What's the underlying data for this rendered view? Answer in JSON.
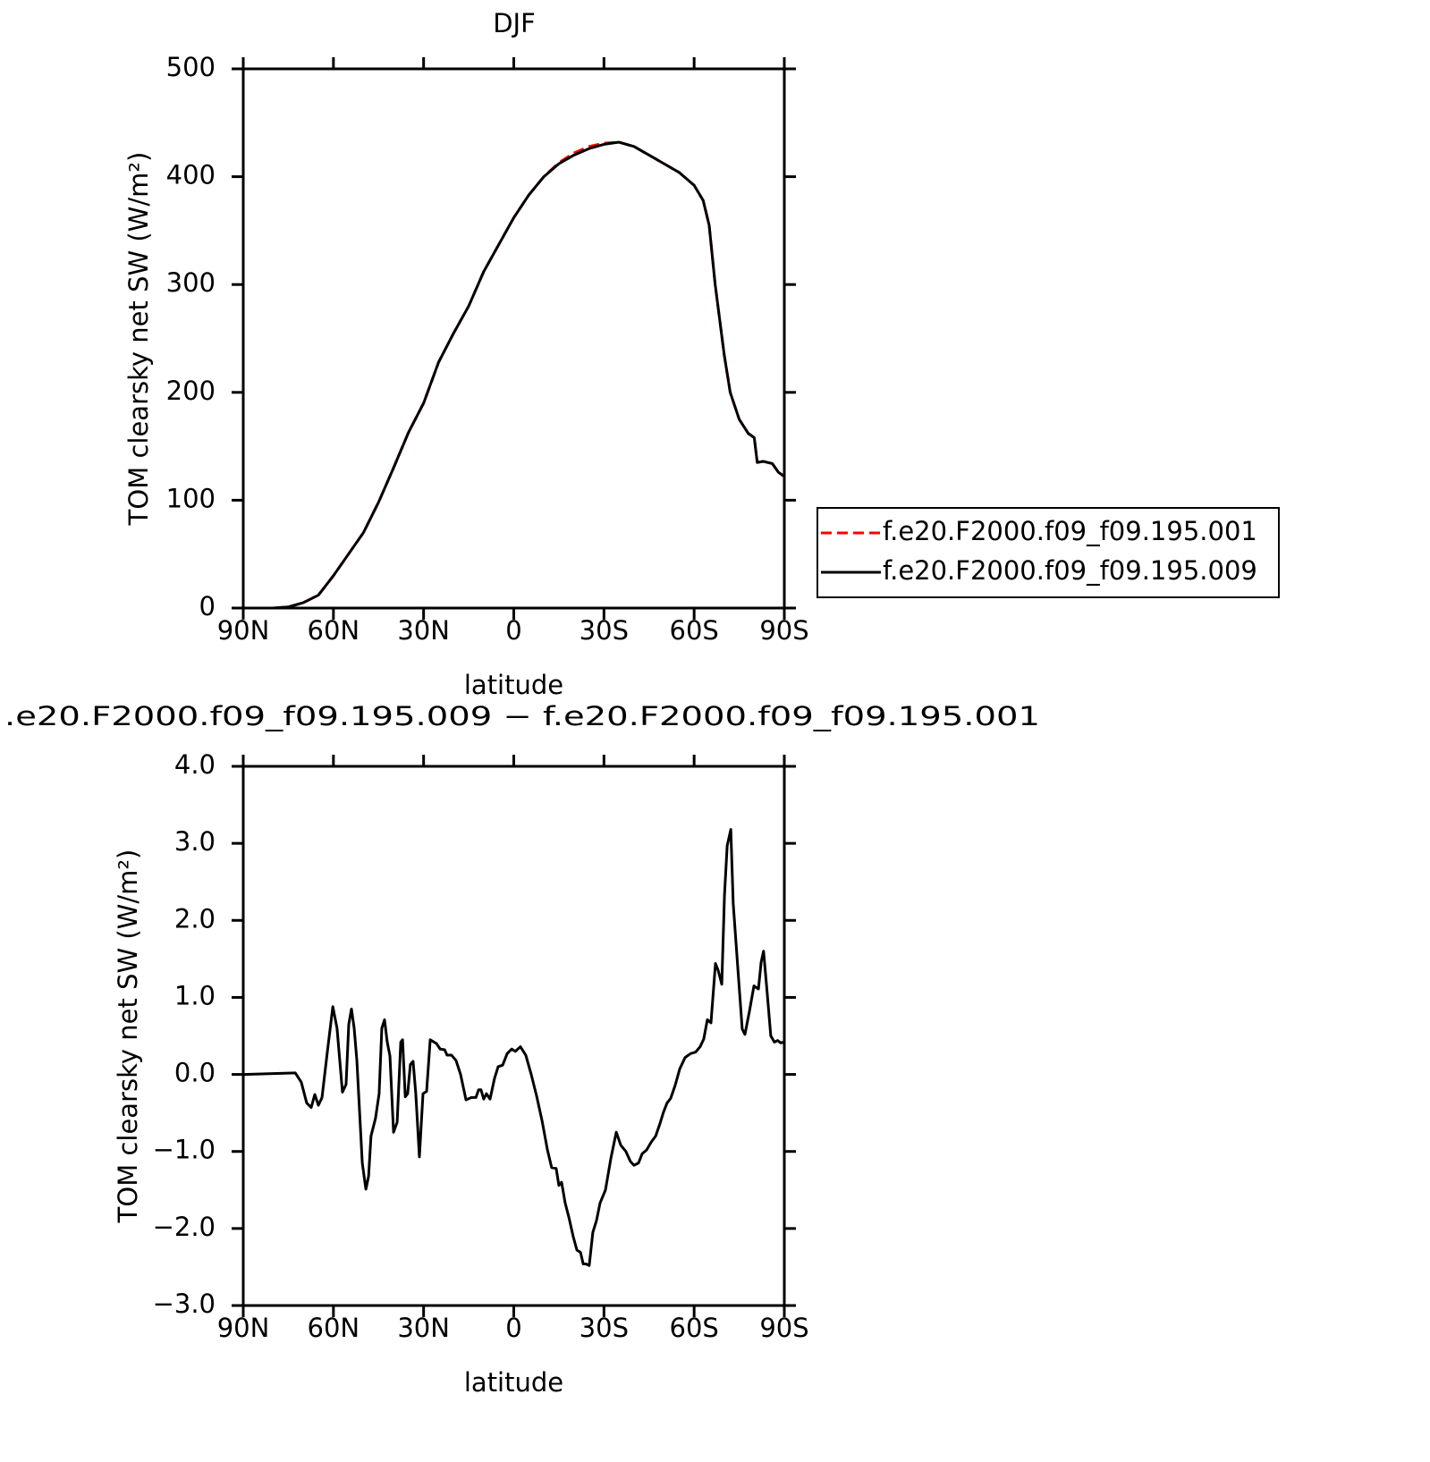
{
  "chart_data": [
    {
      "type": "line",
      "title": "DJF",
      "xlabel": "latitude",
      "ylabel": "TOM clearsky net SW (W/m²)",
      "x": [
        80,
        75,
        70,
        65,
        60,
        55,
        50,
        45,
        40,
        35,
        30,
        25,
        20,
        15,
        10,
        5,
        0,
        -5,
        -10,
        -15,
        -20,
        -25,
        -30,
        -35,
        -40,
        -45,
        -50,
        -55,
        -60,
        -63,
        -65,
        -67,
        -70,
        -72,
        -75,
        -78,
        -80,
        -81,
        -83,
        -86,
        -88,
        -90
      ],
      "series": [
        {
          "name": "f.e20.F2000.f09_f09.195.001",
          "color": "#ff0000",
          "dash": "dashed",
          "values": [
            0,
            1,
            5,
            12,
            30,
            50,
            70,
            98,
            130,
            163,
            190,
            228,
            255,
            280,
            312,
            337,
            362,
            383,
            400,
            413,
            422,
            428,
            431,
            432,
            428,
            420,
            412,
            404,
            392,
            378,
            355,
            300,
            235,
            200,
            175,
            162,
            158,
            135,
            136,
            134,
            126,
            122
          ]
        },
        {
          "name": "f.e20.F2000.f09_f09.195.009",
          "color": "#000000",
          "dash": "solid",
          "values": [
            0,
            1,
            5,
            12,
            30,
            50,
            70,
            98,
            130,
            163,
            190,
            228,
            255,
            280,
            312,
            337,
            362,
            383,
            400,
            412,
            420,
            426,
            430,
            432,
            428,
            420,
            412,
            404,
            392,
            378,
            355,
            300,
            235,
            200,
            175,
            162,
            158,
            135,
            136,
            134,
            126,
            122
          ]
        }
      ],
      "xlim": [
        90,
        -90
      ],
      "xticks": [
        {
          "value": 90,
          "label": "90N"
        },
        {
          "value": 60,
          "label": "60N"
        },
        {
          "value": 30,
          "label": "30N"
        },
        0,
        {
          "value": -30,
          "label": "30S"
        },
        {
          "value": -60,
          "label": "60S"
        },
        {
          "value": -90,
          "label": "90S"
        }
      ],
      "ylim": [
        0,
        500
      ],
      "yticks": [
        0,
        100,
        200,
        300,
        400,
        500
      ],
      "legend": "right"
    },
    {
      "type": "line",
      "title": ".e20.F2000.f09_f09.195.009 − f.e20.F2000.f09_f09.195.001",
      "xlabel": "latitude",
      "ylabel": "TOM clearsky net SW (W/m²)",
      "x": [
        90,
        72.7,
        70.7,
        68.9,
        67.4,
        66.2,
        65,
        63.8,
        62,
        60.2,
        58.8,
        57,
        55.8,
        54.9,
        54,
        53.1,
        52.2,
        50.4,
        49.2,
        48.3,
        47.5,
        46,
        44.8,
        43.9,
        43,
        42.1,
        41.2,
        40,
        38.8,
        37.6,
        37,
        36.1,
        35.3,
        34.4,
        33.5,
        32.6,
        31.4,
        30.2,
        29,
        27.8,
        25.7,
        24.5,
        23,
        22.2,
        20.7,
        19.2,
        17.7,
        15.9,
        14.1,
        12.6,
        11.7,
        10.9,
        10,
        9.1,
        7.9,
        6.4,
        5.2,
        3.7,
        2.2,
        0.7,
        -0.5,
        -2.2,
        -4,
        -5.8,
        -7.6,
        -9.4,
        -11.2,
        -12.6,
        -14.1,
        -15,
        -15.9,
        -17.1,
        -18.3,
        -19.8,
        -21,
        -22.2,
        -23.1,
        -24,
        -25.1,
        -26.3,
        -27.5,
        -28.7,
        -30.5,
        -32.3,
        -34.1,
        -35.6,
        -37.3,
        -38.8,
        -40,
        -41.5,
        -42.7,
        -44.2,
        -45.7,
        -47.2,
        -48.7,
        -49.8,
        -51,
        -52.2,
        -53.7,
        -55.2,
        -57,
        -58.8,
        -60.5,
        -62,
        -63.2,
        -64.4,
        -65.6,
        -67.1,
        -68,
        -69.2,
        -70.1,
        -71,
        -72.2,
        -73,
        -74.5,
        -76,
        -76.9,
        -78.4,
        -79.9,
        -81.4,
        -82.3,
        -83.1,
        -84.3,
        -85.5,
        -86.7,
        -87.8,
        -88.8,
        -90
      ],
      "series": [
        {
          "color": "#000000",
          "dash": "solid",
          "values": [
            0,
            0.02,
            -0.1,
            -0.37,
            -0.43,
            -0.26,
            -0.4,
            -0.3,
            0.3,
            0.88,
            0.6,
            -0.23,
            -0.13,
            0.65,
            0.85,
            0.6,
            0.18,
            -1.15,
            -1.49,
            -1.32,
            -0.8,
            -0.57,
            -0.25,
            0.6,
            0.71,
            0.42,
            0.24,
            -0.75,
            -0.62,
            0.42,
            0.45,
            -0.29,
            -0.25,
            0.13,
            0.17,
            -0.25,
            -1.07,
            -0.25,
            -0.22,
            0.45,
            0.4,
            0.33,
            0.32,
            0.25,
            0.25,
            0.18,
            0,
            -0.33,
            -0.3,
            -0.3,
            -0.2,
            -0.2,
            -0.32,
            -0.25,
            -0.32,
            -0.05,
            0.1,
            0.12,
            0.27,
            0.33,
            0.3,
            0.36,
            0.25,
            0,
            -0.28,
            -0.6,
            -0.98,
            -1.21,
            -1.22,
            -1.44,
            -1.4,
            -1.67,
            -1.85,
            -2.11,
            -2.28,
            -2.31,
            -2.46,
            -2.46,
            -2.48,
            -2.05,
            -1.9,
            -1.67,
            -1.5,
            -1.09,
            -0.75,
            -0.92,
            -1,
            -1.13,
            -1.18,
            -1.15,
            -1.03,
            -0.98,
            -0.88,
            -0.8,
            -0.63,
            -0.49,
            -0.37,
            -0.31,
            -0.14,
            0.07,
            0.22,
            0.27,
            0.29,
            0.36,
            0.46,
            0.71,
            0.67,
            1.44,
            1.35,
            1.17,
            2.33,
            2.97,
            3.18,
            2.22,
            1.4,
            0.59,
            0.52,
            0.82,
            1.15,
            1.11,
            1.46,
            1.6,
            1.06,
            0.5,
            0.42,
            0.44,
            0.41,
            0.42
          ]
        }
      ],
      "xlim": [
        90,
        -90
      ],
      "xticks": [
        {
          "value": 90,
          "label": "90N"
        },
        {
          "value": 60,
          "label": "60N"
        },
        {
          "value": 30,
          "label": "30N"
        },
        0,
        {
          "value": -30,
          "label": "30S"
        },
        {
          "value": -60,
          "label": "60S"
        },
        {
          "value": -90,
          "label": "90S"
        }
      ],
      "ylim": [
        -3,
        4
      ],
      "yticks": [
        {
          "value": -3,
          "label": "−3.0"
        },
        {
          "value": -2,
          "label": "−2.0"
        },
        {
          "value": -1,
          "label": "−1.0"
        },
        {
          "value": 0,
          "label": "0.0"
        },
        {
          "value": 1,
          "label": "1.0"
        },
        {
          "value": 2,
          "label": "2.0"
        },
        {
          "value": 3,
          "label": "3.0"
        },
        {
          "value": 4,
          "label": "4.0"
        }
      ]
    }
  ]
}
